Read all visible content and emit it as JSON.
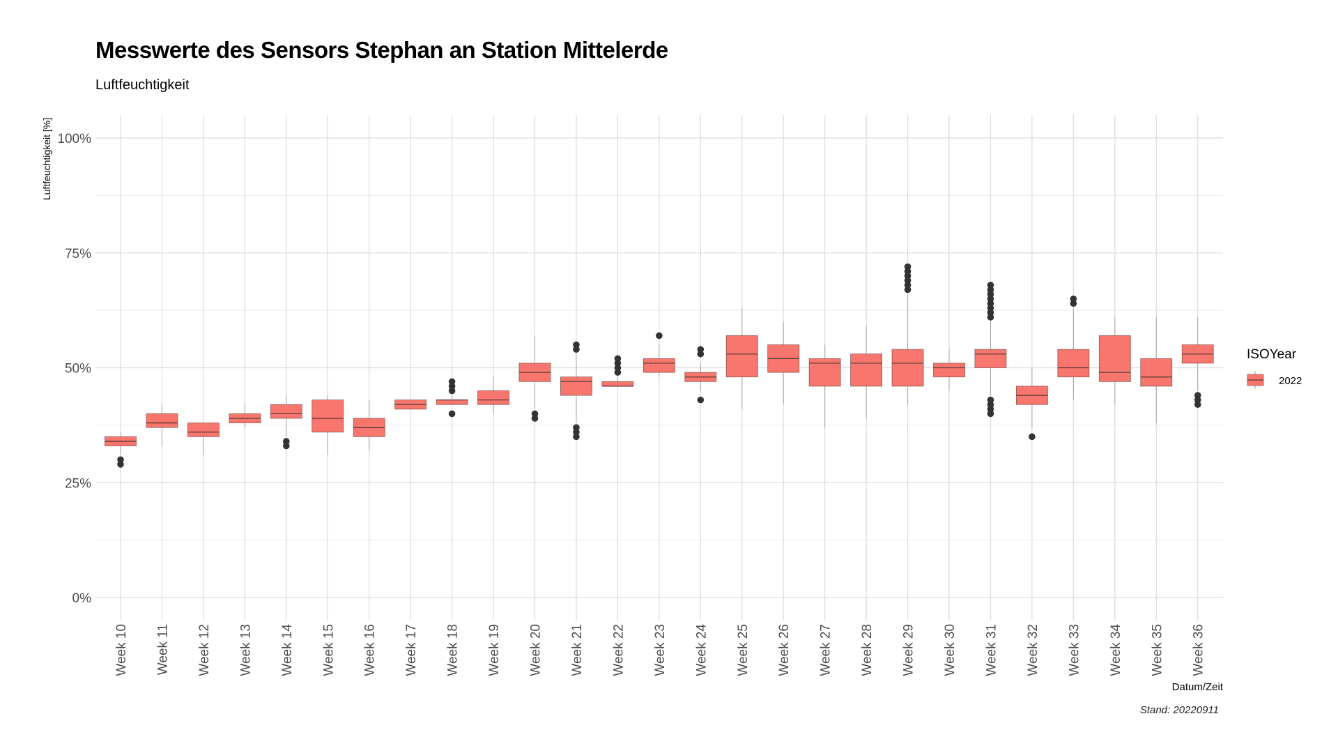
{
  "chart": {
    "title": "Messwerte des Sensors Stephan an Station Mittelerde",
    "subtitle": "Luftfeuchtigkeit",
    "caption": "Stand: 20220911"
  },
  "chart_data": {
    "type": "boxplot",
    "title": "Messwerte des Sensors Stephan an Station Mittelerde",
    "subtitle": "Luftfeuchtigkeit",
    "xlabel": "Datum/Zeit",
    "ylabel": "Luftfeuchtigkeit [%]",
    "ylim": [
      0,
      100
    ],
    "y_ticks": [
      "0%",
      "25%",
      "50%",
      "75%",
      "100%"
    ],
    "grid": true,
    "legend": {
      "title": "ISOYear",
      "position": "right",
      "entries": [
        "2022"
      ]
    },
    "fill_color": "#F8766D",
    "categories": [
      "Week 10",
      "Week 11",
      "Week 12",
      "Week 13",
      "Week 14",
      "Week 15",
      "Week 16",
      "Week 17",
      "Week 18",
      "Week 19",
      "Week 20",
      "Week 21",
      "Week 22",
      "Week 23",
      "Week 24",
      "Week 25",
      "Week 26",
      "Week 27",
      "Week 28",
      "Week 29",
      "Week 30",
      "Week 31",
      "Week 32",
      "Week 33",
      "Week 34",
      "Week 35",
      "Week 36"
    ],
    "series": [
      {
        "name": "2022",
        "boxes": [
          {
            "category": "Week 10",
            "whisker_low": 31,
            "q1": 33,
            "median": 34,
            "q3": 35,
            "whisker_high": 36,
            "outliers": [
              29,
              30
            ]
          },
          {
            "category": "Week 11",
            "whisker_low": 33,
            "q1": 37,
            "median": 38,
            "q3": 40,
            "whisker_high": 42,
            "outliers": []
          },
          {
            "category": "Week 12",
            "whisker_low": 31,
            "q1": 35,
            "median": 36,
            "q3": 38,
            "whisker_high": 38,
            "outliers": []
          },
          {
            "category": "Week 13",
            "whisker_low": 37,
            "q1": 38,
            "median": 39,
            "q3": 40,
            "whisker_high": 42,
            "outliers": []
          },
          {
            "category": "Week 14",
            "whisker_low": 35,
            "q1": 39,
            "median": 40,
            "q3": 42,
            "whisker_high": 44,
            "outliers": [
              33,
              34
            ]
          },
          {
            "category": "Week 15",
            "whisker_low": 31,
            "q1": 36,
            "median": 39,
            "q3": 43,
            "whisker_high": 44,
            "outliers": []
          },
          {
            "category": "Week 16",
            "whisker_low": 32,
            "q1": 35,
            "median": 37,
            "q3": 39,
            "whisker_high": 43,
            "outliers": []
          },
          {
            "category": "Week 17",
            "whisker_low": 41,
            "q1": 41,
            "median": 42,
            "q3": 43,
            "whisker_high": 43,
            "outliers": []
          },
          {
            "category": "Week 18",
            "whisker_low": 42,
            "q1": 42,
            "median": 43,
            "q3": 43,
            "whisker_high": 44,
            "outliers": [
              40,
              45,
              46,
              47
            ]
          },
          {
            "category": "Week 19",
            "whisker_low": 40,
            "q1": 42,
            "median": 43,
            "q3": 45,
            "whisker_high": 48,
            "outliers": []
          },
          {
            "category": "Week 20",
            "whisker_low": 41,
            "q1": 47,
            "median": 49,
            "q3": 51,
            "whisker_high": 57,
            "outliers": [
              39,
              40
            ]
          },
          {
            "category": "Week 21",
            "whisker_low": 38,
            "q1": 44,
            "median": 47,
            "q3": 48,
            "whisker_high": 53,
            "outliers": [
              35,
              36,
              37,
              54,
              55
            ]
          },
          {
            "category": "Week 22",
            "whisker_low": 46,
            "q1": 46,
            "median": 46,
            "q3": 47,
            "whisker_high": 48,
            "outliers": [
              49,
              50,
              51,
              52
            ]
          },
          {
            "category": "Week 23",
            "whisker_low": 48,
            "q1": 49,
            "median": 51,
            "q3": 52,
            "whisker_high": 55,
            "outliers": [
              57
            ]
          },
          {
            "category": "Week 24",
            "whisker_low": 45,
            "q1": 47,
            "median": 48,
            "q3": 49,
            "whisker_high": 51,
            "outliers": [
              43,
              53,
              54
            ]
          },
          {
            "category": "Week 25",
            "whisker_low": 41,
            "q1": 48,
            "median": 53,
            "q3": 57,
            "whisker_high": 63,
            "outliers": []
          },
          {
            "category": "Week 26",
            "whisker_low": 42,
            "q1": 49,
            "median": 52,
            "q3": 55,
            "whisker_high": 60,
            "outliers": []
          },
          {
            "category": "Week 27",
            "whisker_low": 37,
            "q1": 46,
            "median": 51,
            "q3": 52,
            "whisker_high": 55,
            "outliers": []
          },
          {
            "category": "Week 28",
            "whisker_low": 39,
            "q1": 46,
            "median": 51,
            "q3": 53,
            "whisker_high": 59,
            "outliers": []
          },
          {
            "category": "Week 29",
            "whisker_low": 42,
            "q1": 46,
            "median": 51,
            "q3": 54,
            "whisker_high": 66,
            "outliers": [
              67,
              68,
              69,
              70,
              71,
              72
            ]
          },
          {
            "category": "Week 30",
            "whisker_low": 45,
            "q1": 48,
            "median": 50,
            "q3": 51,
            "whisker_high": 54,
            "outliers": []
          },
          {
            "category": "Week 31",
            "whisker_low": 44,
            "q1": 50,
            "median": 53,
            "q3": 54,
            "whisker_high": 60,
            "outliers": [
              40,
              41,
              42,
              43,
              61,
              62,
              63,
              64,
              65,
              66,
              67,
              68
            ]
          },
          {
            "category": "Week 32",
            "whisker_low": 37,
            "q1": 42,
            "median": 44,
            "q3": 46,
            "whisker_high": 50,
            "outliers": [
              35
            ]
          },
          {
            "category": "Week 33",
            "whisker_low": 43,
            "q1": 48,
            "median": 50,
            "q3": 54,
            "whisker_high": 63,
            "outliers": [
              64,
              65
            ]
          },
          {
            "category": "Week 34",
            "whisker_low": 42,
            "q1": 47,
            "median": 49,
            "q3": 57,
            "whisker_high": 61,
            "outliers": []
          },
          {
            "category": "Week 35",
            "whisker_low": 38,
            "q1": 46,
            "median": 48,
            "q3": 52,
            "whisker_high": 61,
            "outliers": []
          },
          {
            "category": "Week 36",
            "whisker_low": 45,
            "q1": 51,
            "median": 53,
            "q3": 55,
            "whisker_high": 61,
            "outliers": [
              42,
              43,
              44
            ]
          }
        ]
      }
    ]
  }
}
